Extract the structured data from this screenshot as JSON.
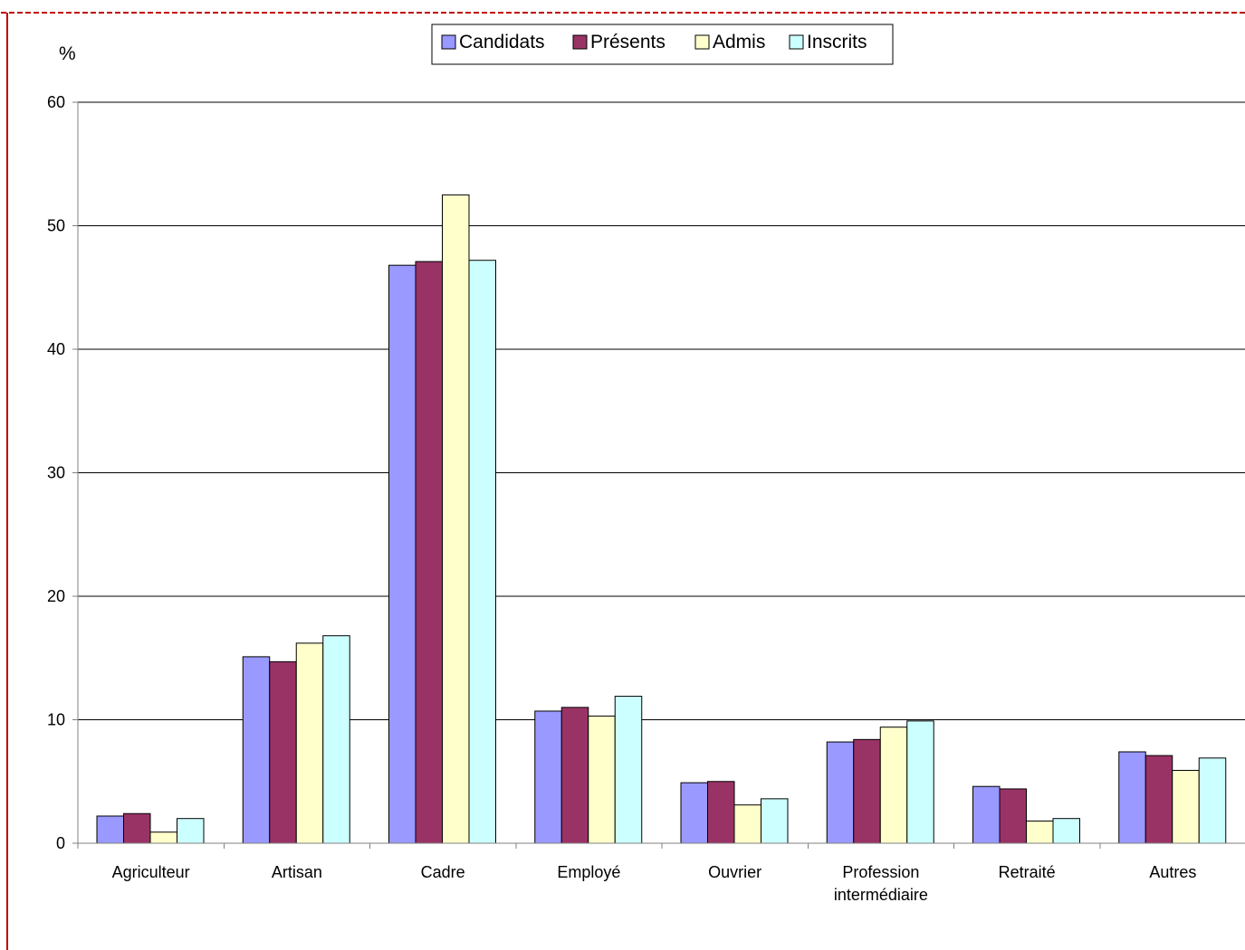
{
  "chart_data": {
    "type": "bar",
    "ylabel": "%",
    "ylim": [
      0,
      60
    ],
    "yticks": [
      "0",
      "10",
      "20",
      "30",
      "40",
      "50",
      "60"
    ],
    "grid": true,
    "legend_position": "top",
    "categories": [
      "Agriculteur",
      "Artisan",
      "Cadre",
      "Employé",
      "Ouvrier",
      "Profession intermédiaire",
      "Retraité",
      "Autres"
    ],
    "category_lines": [
      [
        "Agriculteur"
      ],
      [
        "Artisan"
      ],
      [
        "Cadre"
      ],
      [
        "Employé"
      ],
      [
        "Ouvrier"
      ],
      [
        "Profession",
        "intermédiaire"
      ],
      [
        "Retraité"
      ],
      [
        "Autres"
      ]
    ],
    "series": [
      {
        "name": "Candidats",
        "color": "#9999ff",
        "values": [
          2.2,
          15.1,
          46.8,
          10.7,
          4.9,
          8.2,
          4.6,
          7.4
        ]
      },
      {
        "name": "Présents",
        "color": "#993366",
        "values": [
          2.4,
          14.7,
          47.1,
          11.0,
          5.0,
          8.4,
          4.4,
          7.1
        ]
      },
      {
        "name": "Admis",
        "color": "#ffffcc",
        "values": [
          0.9,
          16.2,
          52.5,
          10.3,
          3.1,
          9.4,
          1.8,
          5.9
        ]
      },
      {
        "name": "Inscrits",
        "color": "#ccffff",
        "values": [
          2.0,
          16.8,
          47.2,
          11.9,
          3.6,
          9.9,
          2.0,
          6.9
        ]
      }
    ]
  },
  "colors": {
    "frame_border": "#c00000",
    "gridline": "#000000",
    "axis": "#808080"
  }
}
